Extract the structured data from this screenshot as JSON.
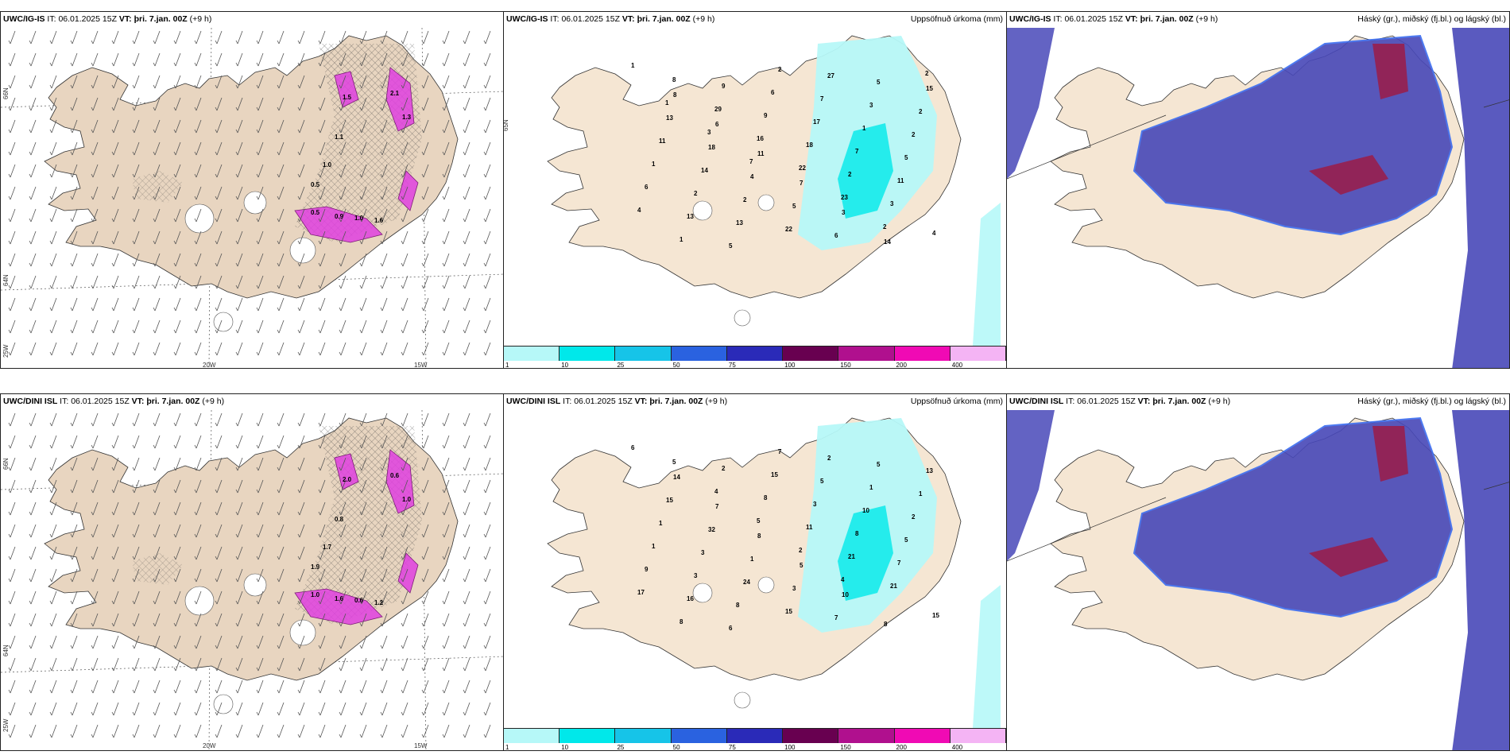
{
  "rows": [
    {
      "model": "UWC/IG-IS",
      "it_label": "IT:",
      "it_value": "06.01.2025 15Z",
      "vt_label": "VT:",
      "vt_value": "þri. 7.jan. 00Z",
      "lead": "(+9 h)",
      "precip_title": "Uppsöfnuð úrkoma (mm)",
      "cloud_title": "Háský (gr.), miðský (fj.bl.) og lágský (bl.)",
      "precip_values": [
        "1",
        "8",
        "6",
        "11",
        "7",
        "3",
        "14",
        "15",
        "13",
        "18",
        "4",
        "5",
        "6",
        "5",
        "2",
        "11",
        "14",
        "2",
        "22",
        "27",
        "3",
        "2",
        "1",
        "2",
        "13",
        "2",
        "7",
        "1",
        "5",
        "6",
        "13",
        "5",
        "6",
        "17",
        "7",
        "11",
        "4",
        "1",
        "9",
        "9",
        "18",
        "2",
        "3",
        "4",
        "8",
        "29",
        "16",
        "22",
        "23",
        "2",
        "2",
        "1",
        "3",
        "7"
      ],
      "wind_values": [
        "2.1",
        "1.3",
        "1.5",
        "1.1",
        "0.5",
        "1.0",
        "0.9",
        "1.0",
        "1.6",
        "0.5"
      ]
    },
    {
      "model": "UWC/DINI ISL",
      "it_label": "IT:",
      "it_value": "06.01.2025 15Z",
      "vt_label": "VT:",
      "vt_value": "þri. 7.jan. 00Z",
      "lead": "(+9 h)",
      "precip_title": "Uppsöfnuð úrkoma (mm)",
      "cloud_title": "Háský (gr.), miðský (fj.bl.) og lágský (bl.)",
      "precip_values": [
        "6",
        "14",
        "7",
        "8",
        "5",
        "10",
        "8",
        "13",
        "15",
        "32",
        "1",
        "3",
        "7",
        "5",
        "1",
        "1",
        "3",
        "24",
        "15",
        "2",
        "1",
        "2",
        "1",
        "3",
        "8",
        "7",
        "5",
        "10",
        "5",
        "9",
        "16",
        "6",
        "15",
        "3",
        "8",
        "7",
        "17",
        "8",
        "2",
        "8",
        "11",
        "21",
        "21",
        "15",
        "5",
        "4",
        "5",
        "2",
        "4"
      ],
      "wind_values": [
        "0.6",
        "1.0",
        "2.0",
        "0.8",
        "1.9",
        "1.7",
        "1.6",
        "0.6",
        "1.2",
        "1.0"
      ]
    }
  ],
  "axis_labels": {
    "lat_66": "66N",
    "lat_64": "64N",
    "lat_25w": "25W",
    "lon_20w": "20W",
    "lon_15w": "15W"
  },
  "colorbar": {
    "ticks": [
      "1",
      "10",
      "25",
      "50",
      "75",
      "100",
      "150",
      "200",
      "400"
    ],
    "colors": [
      "#b6f8f8",
      "#00e8ea",
      "#16c4e8",
      "#2a62e0",
      "#2a2ab8",
      "#680050",
      "#b0108e",
      "#f00ab4",
      "#f4b4f4"
    ]
  },
  "colors": {
    "land": "#f5e6d3",
    "land_left": "#e8d5c0",
    "precip_light": "#b6f8f8",
    "precip_mid": "#00e8ea",
    "high_cloud": "#4848b8",
    "low_cloud": "#3a6cf0",
    "mid_cloud": "#a01840",
    "wind_pink": "#e040e0",
    "coast": "#333333"
  }
}
